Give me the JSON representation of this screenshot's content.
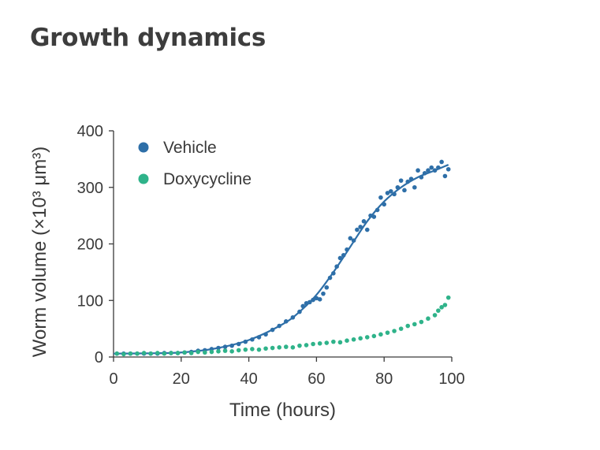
{
  "page_title": "Growth dynamics",
  "chart_data": {
    "type": "scatter",
    "title": "Growth dynamics",
    "xlabel": "Time (hours)",
    "ylabel": "Worm volume (×10³ μm³)",
    "xlim": [
      0,
      100
    ],
    "ylim": [
      0,
      400
    ],
    "xticks": [
      0,
      20,
      40,
      60,
      80,
      100
    ],
    "yticks": [
      0,
      100,
      200,
      300,
      400
    ],
    "grid": false,
    "legend": "top-left",
    "series": [
      {
        "name": "Vehicle",
        "color": "#2e6fa8",
        "fit": "logistic",
        "x": [
          1,
          3,
          5,
          7,
          9,
          11,
          13,
          15,
          17,
          19,
          21,
          23,
          25,
          27,
          29,
          31,
          33,
          35,
          37,
          39,
          41,
          43,
          45,
          47,
          49,
          51,
          53,
          55,
          56,
          57,
          58,
          59,
          60,
          61,
          62,
          63,
          64,
          65,
          66,
          67,
          68,
          69,
          70,
          71,
          72,
          73,
          74,
          75,
          76,
          77,
          78,
          79,
          80,
          81,
          82,
          83,
          84,
          85,
          86,
          87,
          88,
          89,
          90,
          91,
          92,
          93,
          94,
          95,
          96,
          97,
          98,
          99
        ],
        "y": [
          6,
          6,
          6,
          6,
          6,
          6,
          6,
          7,
          7,
          7,
          8,
          9,
          11,
          12,
          14,
          16,
          18,
          20,
          23,
          27,
          31,
          35,
          40,
          48,
          55,
          63,
          70,
          80,
          90,
          95,
          97,
          101,
          104,
          102,
          112,
          123,
          140,
          148,
          160,
          175,
          180,
          190,
          210,
          206,
          225,
          230,
          240,
          225,
          250,
          248,
          260,
          282,
          270,
          290,
          293,
          288,
          300,
          312,
          295,
          310,
          315,
          300,
          330,
          318,
          325,
          330,
          335,
          330,
          335,
          345,
          320,
          332
        ],
        "fit_curve": [
          [
            0,
            6
          ],
          [
            10,
            6.5
          ],
          [
            20,
            8
          ],
          [
            30,
            15
          ],
          [
            40,
            30
          ],
          [
            50,
            58
          ],
          [
            55,
            80
          ],
          [
            60,
            110
          ],
          [
            65,
            150
          ],
          [
            70,
            195
          ],
          [
            75,
            240
          ],
          [
            80,
            275
          ],
          [
            85,
            300
          ],
          [
            90,
            318
          ],
          [
            95,
            330
          ],
          [
            99,
            340
          ]
        ]
      },
      {
        "name": "Doxycycline",
        "color": "#2fb38a",
        "fit": "none",
        "x": [
          1,
          3,
          5,
          7,
          9,
          11,
          13,
          15,
          17,
          19,
          21,
          23,
          25,
          27,
          29,
          31,
          33,
          35,
          37,
          39,
          41,
          43,
          45,
          47,
          49,
          51,
          53,
          55,
          57,
          59,
          61,
          63,
          65,
          67,
          69,
          71,
          73,
          75,
          77,
          79,
          81,
          83,
          85,
          87,
          89,
          91,
          93,
          95,
          96,
          97,
          98,
          99
        ],
        "y": [
          6,
          5,
          6,
          6,
          7,
          6,
          7,
          6,
          7,
          7,
          8,
          7,
          9,
          8,
          9,
          10,
          11,
          10,
          12,
          13,
          14,
          13,
          15,
          16,
          17,
          18,
          17,
          20,
          21,
          23,
          24,
          25,
          27,
          26,
          29,
          31,
          33,
          35,
          37,
          40,
          43,
          46,
          50,
          55,
          58,
          62,
          68,
          74,
          82,
          88,
          92,
          105
        ]
      }
    ]
  }
}
